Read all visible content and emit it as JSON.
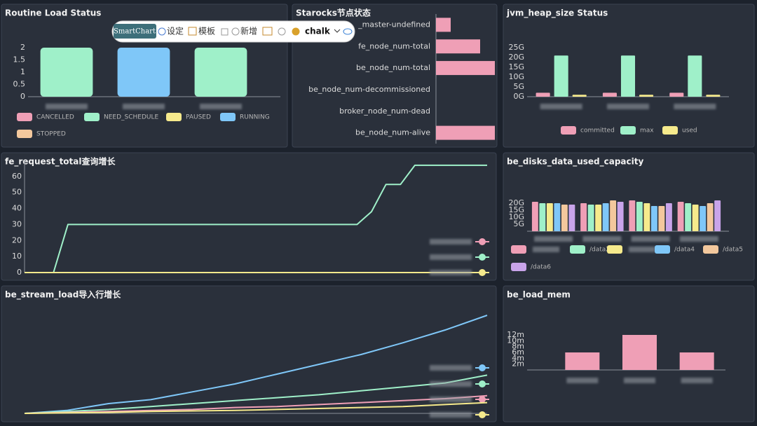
{
  "toolbar": {
    "brand": "SmartChart",
    "items": [
      "设定",
      "模板",
      "新增"
    ],
    "theme": "chalk"
  },
  "chart_data": [
    {
      "type": "bar",
      "title": "Routine Load Status",
      "stacked": true,
      "categories": [
        null,
        null,
        null
      ],
      "series": [
        {
          "name": "CANCELLED",
          "color": "#ef9fb6",
          "values": [
            0,
            0,
            0
          ]
        },
        {
          "name": "NEED_SCHEDULE",
          "color": "#9ff0c9",
          "values": [
            2,
            0,
            2
          ]
        },
        {
          "name": "PAUSED",
          "color": "#f6ea8c",
          "values": [
            0,
            0,
            0
          ]
        },
        {
          "name": "RUNNING",
          "color": "#7fc7f8",
          "values": [
            0,
            2,
            0
          ]
        },
        {
          "name": "STOPPED",
          "color": "#f3c89d",
          "values": [
            0,
            0,
            0
          ]
        }
      ],
      "ylim": [
        0,
        2
      ],
      "yticks": [
        0,
        0.5,
        1,
        1.5,
        2
      ],
      "grid": false
    },
    {
      "type": "hbar",
      "title": "Starocks节点状态",
      "categories": [
        "_master-undefined",
        "fe_node_num-total",
        "be_node_num-total",
        "be_node_num-decommissioned",
        "broker_node_num-dead",
        "be_node_num-alive"
      ],
      "values": [
        1,
        3,
        4,
        0,
        0,
        4
      ],
      "color": "#ef9fb6",
      "xlim": [
        0,
        4
      ],
      "grid": false
    },
    {
      "type": "bar",
      "title": "jvm_heap_size Status",
      "stacked": false,
      "categories": [
        null,
        null,
        null
      ],
      "series": [
        {
          "name": "committed",
          "color": "#ef9fb6",
          "values": [
            2,
            2,
            2
          ]
        },
        {
          "name": "max",
          "color": "#9ff0c9",
          "values": [
            21,
            21,
            21
          ]
        },
        {
          "name": "used",
          "color": "#f6ea8c",
          "values": [
            1,
            1,
            1
          ]
        }
      ],
      "ylim": [
        0,
        25
      ],
      "yticks": [
        {
          "value": 0,
          "label": "0G"
        },
        {
          "value": 5,
          "label": "5G"
        },
        {
          "value": 10,
          "label": "10G"
        },
        {
          "value": 15,
          "label": "15G"
        },
        {
          "value": 20,
          "label": "20G"
        },
        {
          "value": 25,
          "label": "25G"
        }
      ],
      "grid": false
    },
    {
      "type": "line",
      "title": "fe_request_total查询增长",
      "series": [
        {
          "name": null,
          "color": "#ef9fb6",
          "values": [
            0,
            0,
            0,
            0,
            0,
            0,
            0,
            0,
            0,
            0,
            0,
            0,
            0,
            0,
            0,
            0,
            0,
            0,
            0,
            0,
            0,
            0,
            0,
            0,
            0,
            0,
            0,
            0,
            0,
            0,
            0,
            0,
            0
          ]
        },
        {
          "name": null,
          "color": "#9ff0c9",
          "values": [
            0,
            0,
            0,
            30,
            30,
            30,
            30,
            30,
            30,
            30,
            30,
            30,
            30,
            30,
            30,
            30,
            30,
            30,
            30,
            30,
            30,
            30,
            30,
            30,
            38,
            55,
            55,
            67,
            67,
            67,
            67,
            67,
            67
          ]
        },
        {
          "name": null,
          "color": "#f6ea8c",
          "values": [
            0,
            0,
            0,
            0,
            0,
            0,
            0,
            0,
            0,
            0,
            0,
            0,
            0,
            0,
            0,
            0,
            0,
            0,
            0,
            0,
            0,
            0,
            0,
            0,
            0,
            0,
            0,
            0,
            0,
            0,
            0,
            0,
            0
          ]
        }
      ],
      "ylim": [
        0,
        70
      ],
      "yticks": [
        0,
        10,
        20,
        30,
        40,
        50,
        60
      ],
      "grid": false
    },
    {
      "type": "bar",
      "title": "be_disks_data_used_capacity",
      "stacked": false,
      "categories": [
        null,
        null,
        null,
        null
      ],
      "series": [
        {
          "name": null,
          "color": "#ef9fb6",
          "values": [
            21,
            20,
            22,
            21
          ]
        },
        {
          "name": "/data2",
          "color": "#9ff0c9",
          "values": [
            20,
            19,
            21,
            20
          ]
        },
        {
          "name": null,
          "color": "#f6ea8c",
          "values": [
            20,
            19,
            20,
            19
          ]
        },
        {
          "name": "/data4",
          "color": "#7fc7f8",
          "values": [
            20,
            20,
            18,
            18
          ]
        },
        {
          "name": "/data5",
          "color": "#f3c89d",
          "values": [
            19,
            22,
            18,
            20
          ]
        },
        {
          "name": "/data6",
          "color": "#c9a4ea",
          "values": [
            19,
            21,
            20,
            22
          ]
        }
      ],
      "ylim": [
        0,
        25
      ],
      "yticks": [
        {
          "value": 5,
          "label": "5G"
        },
        {
          "value": 10,
          "label": "10G"
        },
        {
          "value": 15,
          "label": "15G"
        },
        {
          "value": 20,
          "label": "20G"
        }
      ],
      "grid": false
    },
    {
      "type": "line",
      "title": "be_stream_load导入行增长",
      "series": [
        {
          "name": null,
          "color": "#7fc7f8",
          "values": [
            0,
            3,
            10,
            14,
            22,
            30,
            40,
            50,
            60,
            72,
            85,
            100
          ]
        },
        {
          "name": null,
          "color": "#9ff0c9",
          "values": [
            0,
            2,
            4,
            7,
            10,
            13,
            16,
            19,
            23,
            27,
            31,
            39
          ]
        },
        {
          "name": null,
          "color": "#ef9fb6",
          "values": [
            0,
            1,
            2,
            3,
            4,
            6,
            7,
            9,
            11,
            13,
            15,
            18
          ]
        },
        {
          "name": null,
          "color": "#f6ea8c",
          "values": [
            0,
            0.5,
            1,
            2,
            2.5,
            3,
            4,
            5,
            6,
            7,
            9,
            11
          ]
        }
      ],
      "ylim": [
        0,
        100
      ],
      "grid": false
    },
    {
      "type": "bar",
      "title": "be_load_mem",
      "categories": [
        null,
        null,
        null
      ],
      "values": [
        6,
        12,
        6
      ],
      "color": "#ef9fb6",
      "ylim": [
        0,
        12
      ],
      "yticks": [
        {
          "value": 2,
          "label": "2m"
        },
        {
          "value": 4,
          "label": "4m"
        },
        {
          "value": 6,
          "label": "6m"
        },
        {
          "value": 8,
          "label": "8m"
        },
        {
          "value": 10,
          "label": "10m"
        },
        {
          "value": 12,
          "label": "12m"
        }
      ],
      "grid": false
    }
  ]
}
